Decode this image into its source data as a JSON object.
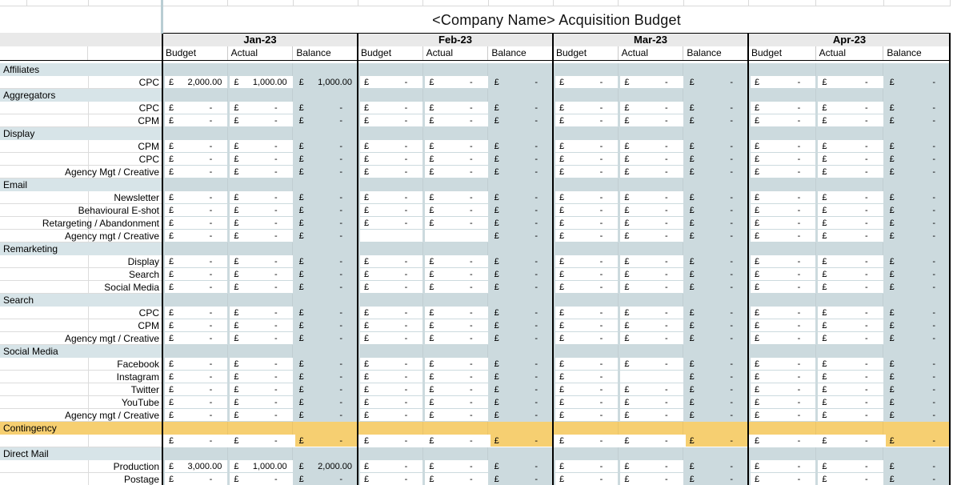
{
  "title": "<Company Name> Acquisition Budget",
  "currency_symbol": "£",
  "empty_value": "-",
  "months": [
    "Jan-23",
    "Feb-23",
    "Mar-23",
    "Apr-23"
  ],
  "column_headers": [
    "Budget",
    "Actual",
    "Balance"
  ],
  "colors": {
    "block_bg": "#ccdade",
    "category_bg": "#d7e4e8",
    "highlight": "#f6cf71",
    "month_header_bg": "#e9e9e9",
    "border_black": "#000000"
  },
  "rows": [
    {
      "type": "category",
      "label": "Affiliates"
    },
    {
      "type": "data",
      "label": "CPC",
      "cells": [
        [
          "2,000.00",
          "1,000.00",
          "1,000.00"
        ],
        [
          "-",
          "-",
          "-"
        ],
        [
          "-",
          "-",
          "-"
        ],
        [
          "-",
          "-",
          "-"
        ]
      ]
    },
    {
      "type": "category",
      "label": "Aggregators"
    },
    {
      "type": "data",
      "label": "CPC",
      "cells": [
        [
          "-",
          "-",
          "-"
        ],
        [
          "-",
          "-",
          "-"
        ],
        [
          "-",
          "-",
          "-"
        ],
        [
          "-",
          "-",
          "-"
        ]
      ]
    },
    {
      "type": "data",
      "label": "CPM",
      "cells": [
        [
          "-",
          "-",
          "-"
        ],
        [
          "-",
          "-",
          "-"
        ],
        [
          "-",
          "-",
          "-"
        ],
        [
          "-",
          "-",
          "-"
        ]
      ]
    },
    {
      "type": "category",
      "label": "Display"
    },
    {
      "type": "data",
      "label": "CPM",
      "cells": [
        [
          "-",
          "-",
          "-"
        ],
        [
          "-",
          "-",
          "-"
        ],
        [
          "-",
          "-",
          "-"
        ],
        [
          "-",
          "-",
          "-"
        ]
      ]
    },
    {
      "type": "data",
      "label": "CPC",
      "cells": [
        [
          "-",
          "-",
          "-"
        ],
        [
          "-",
          "-",
          "-"
        ],
        [
          "-",
          "-",
          "-"
        ],
        [
          "-",
          "-",
          "-"
        ]
      ]
    },
    {
      "type": "data",
      "label": "Agency Mgt / Creative",
      "cells": [
        [
          "-",
          "-",
          "-"
        ],
        [
          "-",
          "-",
          "-"
        ],
        [
          "-",
          "-",
          "-"
        ],
        [
          "-",
          "-",
          "-"
        ]
      ]
    },
    {
      "type": "category",
      "label": "Email"
    },
    {
      "type": "data",
      "label": "Newsletter",
      "cells": [
        [
          "-",
          "-",
          "-"
        ],
        [
          "-",
          "-",
          "-"
        ],
        [
          "-",
          "-",
          "-"
        ],
        [
          "-",
          "-",
          "-"
        ]
      ]
    },
    {
      "type": "data",
      "label": "Behavioural E-shot",
      "cells": [
        [
          "-",
          "-",
          "-"
        ],
        [
          "-",
          "-",
          "-"
        ],
        [
          "-",
          "-",
          "-"
        ],
        [
          "-",
          "-",
          "-"
        ]
      ]
    },
    {
      "type": "data",
      "label": "Retargeting / Abandonment",
      "cells": [
        [
          "-",
          "-",
          "-"
        ],
        [
          "-",
          "-",
          "-"
        ],
        [
          "-",
          "-",
          "-"
        ],
        [
          "-",
          "-",
          "-"
        ]
      ]
    },
    {
      "type": "data",
      "label": "Agency mgt / Creative",
      "cells": [
        [
          "-",
          "-",
          "-"
        ],
        [
          null,
          null,
          "-"
        ],
        [
          "-",
          "-",
          "-"
        ],
        [
          "-",
          "-",
          "-"
        ]
      ]
    },
    {
      "type": "category",
      "label": "Remarketing"
    },
    {
      "type": "data",
      "label": "Display",
      "cells": [
        [
          "-",
          "-",
          "-"
        ],
        [
          "-",
          "-",
          "-"
        ],
        [
          "-",
          "-",
          "-"
        ],
        [
          "-",
          "-",
          "-"
        ]
      ]
    },
    {
      "type": "data",
      "label": "Search",
      "cells": [
        [
          "-",
          "-",
          "-"
        ],
        [
          "-",
          "-",
          "-"
        ],
        [
          "-",
          "-",
          "-"
        ],
        [
          "-",
          "-",
          "-"
        ]
      ]
    },
    {
      "type": "data",
      "label": "Social Media",
      "cells": [
        [
          "-",
          "-",
          "-"
        ],
        [
          "-",
          "-",
          "-"
        ],
        [
          "-",
          "-",
          "-"
        ],
        [
          "-",
          "-",
          "-"
        ]
      ]
    },
    {
      "type": "category",
      "label": "Search"
    },
    {
      "type": "data",
      "label": "CPC",
      "cells": [
        [
          "-",
          "-",
          "-"
        ],
        [
          "-",
          "-",
          "-"
        ],
        [
          "-",
          "-",
          "-"
        ],
        [
          "-",
          "-",
          "-"
        ]
      ]
    },
    {
      "type": "data",
      "label": "CPM",
      "cells": [
        [
          "-",
          "-",
          "-"
        ],
        [
          "-",
          "-",
          "-"
        ],
        [
          "-",
          "-",
          "-"
        ],
        [
          "-",
          "-",
          "-"
        ]
      ]
    },
    {
      "type": "data",
      "label": "Agency mgt / Creative",
      "cells": [
        [
          "-",
          "-",
          "-"
        ],
        [
          "-",
          "-",
          "-"
        ],
        [
          "-",
          "-",
          "-"
        ],
        [
          "-",
          "-",
          "-"
        ]
      ]
    },
    {
      "type": "category",
      "label": "Social Media"
    },
    {
      "type": "data",
      "label": "Facebook",
      "cells": [
        [
          "-",
          "-",
          "-"
        ],
        [
          "-",
          "-",
          "-"
        ],
        [
          "-",
          "-",
          "-"
        ],
        [
          "-",
          "-",
          "-"
        ]
      ]
    },
    {
      "type": "data",
      "label": "Instagram",
      "cells": [
        [
          "-",
          "-",
          "-"
        ],
        [
          "-",
          "-",
          "-"
        ],
        [
          "-",
          null,
          "-"
        ],
        [
          "-",
          "-",
          "-"
        ]
      ]
    },
    {
      "type": "data",
      "label": "Twitter",
      "cells": [
        [
          "-",
          "-",
          "-"
        ],
        [
          "-",
          "-",
          "-"
        ],
        [
          "-",
          "-",
          "-"
        ],
        [
          "-",
          "-",
          "-"
        ]
      ]
    },
    {
      "type": "data",
      "label": "YouTube",
      "cells": [
        [
          "-",
          "-",
          "-"
        ],
        [
          "-",
          "-",
          "-"
        ],
        [
          "-",
          "-",
          "-"
        ],
        [
          "-",
          "-",
          "-"
        ]
      ]
    },
    {
      "type": "data",
      "label": "Agency mgt / Creative",
      "cells": [
        [
          "-",
          "-",
          "-"
        ],
        [
          "-",
          "-",
          "-"
        ],
        [
          "-",
          "-",
          "-"
        ],
        [
          "-",
          "-",
          "-"
        ]
      ]
    },
    {
      "type": "category",
      "label": "Contingency",
      "highlight": true
    },
    {
      "type": "data",
      "label": "",
      "plain_bg": true,
      "highlight_balance": true,
      "cells": [
        [
          "-",
          "-",
          "-"
        ],
        [
          "-",
          "-",
          "-"
        ],
        [
          "-",
          "-",
          "-"
        ],
        [
          "-",
          "-",
          "-"
        ]
      ]
    },
    {
      "type": "category",
      "label": "Direct Mail"
    },
    {
      "type": "data",
      "label": "Production",
      "cells": [
        [
          "3,000.00",
          "1,000.00",
          "2,000.00"
        ],
        [
          "-",
          "-",
          "-"
        ],
        [
          "-",
          "-",
          "-"
        ],
        [
          "-",
          "-",
          "-"
        ]
      ]
    },
    {
      "type": "data",
      "label": "Postage",
      "cells": [
        [
          "-",
          "-",
          "-"
        ],
        [
          "-",
          "-",
          "-"
        ],
        [
          "-",
          "-",
          "-"
        ],
        [
          "-",
          "-",
          "-"
        ]
      ]
    }
  ]
}
